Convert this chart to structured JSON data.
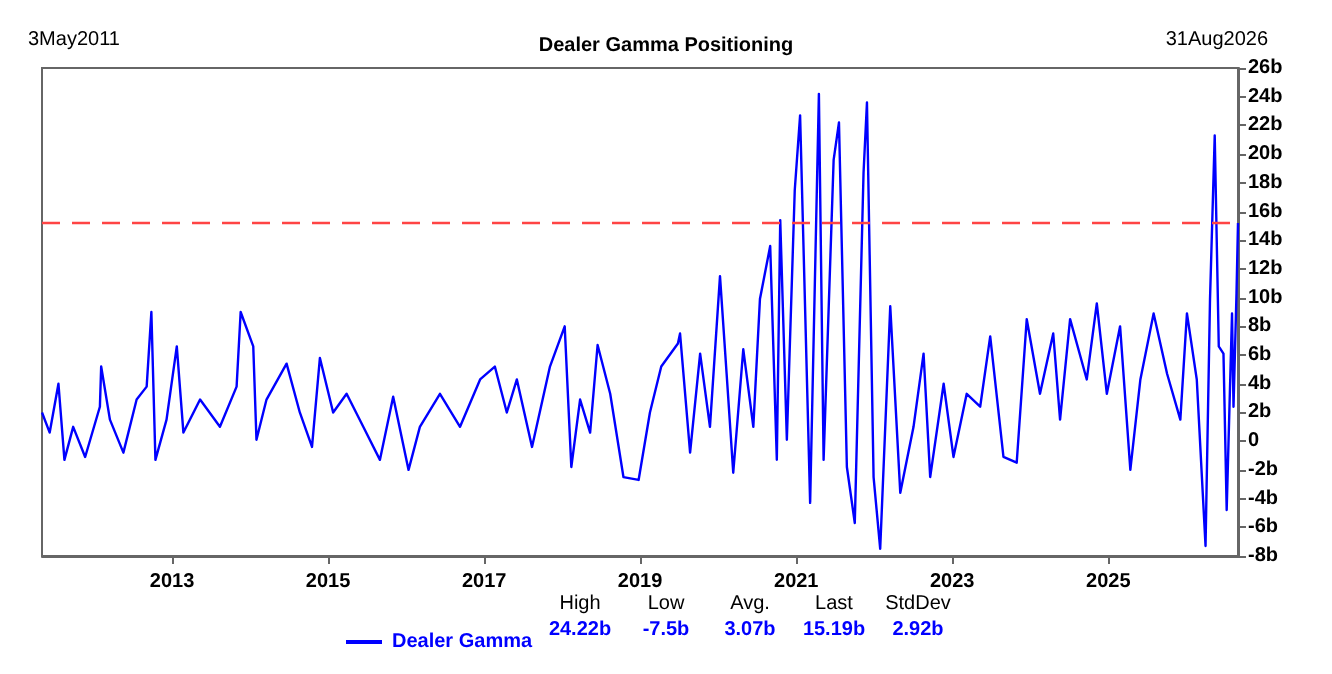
{
  "chart_data": {
    "type": "line",
    "title": "Dealer Gamma Positioning",
    "x": [
      "2011-05-03",
      "2011-06-08",
      "2011-07-19",
      "2011-08-16",
      "2011-09-26",
      "2011-11-21",
      "2012-01-29",
      "2012-02-04",
      "2012-03-16",
      "2012-05-18",
      "2012-07-19",
      "2012-09-04",
      "2012-09-26",
      "2012-10-15",
      "2012-12-06",
      "2013-01-23",
      "2013-02-23",
      "2013-05-12",
      "2013-08-13",
      "2013-10-30",
      "2013-11-18",
      "2014-01-16",
      "2014-01-31",
      "2014-03-19",
      "2014-06-21",
      "2014-08-22",
      "2014-10-18",
      "2014-11-24",
      "2015-01-25",
      "2015-03-29",
      "2015-06-15",
      "2015-09-01",
      "2015-11-02",
      "2016-01-13",
      "2016-03-06",
      "2016-06-08",
      "2016-09-10",
      "2016-12-13",
      "2017-02-20",
      "2017-04-17",
      "2017-06-03",
      "2017-08-13",
      "2017-11-05",
      "2018-01-13",
      "2018-02-13",
      "2018-03-26",
      "2018-05-12",
      "2018-06-16",
      "2018-08-14",
      "2018-10-15",
      "2018-12-25",
      "2019-02-16",
      "2019-04-10",
      "2019-06-27",
      "2019-07-07",
      "2019-08-23",
      "2019-10-09",
      "2019-11-24",
      "2020-01-10",
      "2020-02-10",
      "2020-03-12",
      "2020-04-28",
      "2020-06-14",
      "2020-07-15",
      "2020-09-01",
      "2020-10-02",
      "2020-10-18",
      "2020-11-18",
      "2020-12-25",
      "2021-01-19",
      "2021-03-07",
      "2021-04-17",
      "2021-05-09",
      "2021-06-25",
      "2021-07-20",
      "2021-08-26",
      "2021-10-02",
      "2021-11-12",
      "2021-11-28",
      "2021-12-29",
      "2022-01-29",
      "2022-03-17",
      "2022-05-03",
      "2022-07-04",
      "2022-08-20",
      "2022-09-20",
      "2022-11-22",
      "2023-01-07",
      "2023-03-10",
      "2023-05-12",
      "2023-06-28",
      "2023-08-29",
      "2023-10-30",
      "2023-12-16",
      "2024-02-16",
      "2024-04-18",
      "2024-05-20",
      "2024-07-06",
      "2024-09-22",
      "2024-11-08",
      "2024-12-25",
      "2025-02-25",
      "2025-04-14",
      "2025-05-31",
      "2025-08-01",
      "2025-10-03",
      "2025-12-04",
      "2026-01-04",
      "2026-02-19",
      "2026-04-01",
      "2026-04-22",
      "2026-05-14",
      "2026-06-02",
      "2026-06-24",
      "2026-07-09",
      "2026-08-03",
      "2026-08-10",
      "2026-08-24",
      "2026-08-31"
    ],
    "series": [
      {
        "name": "Dealer Gamma",
        "color": "#0000ff",
        "values": [
          2.0,
          0.6,
          4.0,
          -1.3,
          1,
          -1.1,
          2.4,
          5.2,
          1.5,
          -0.8,
          2.9,
          3.8,
          9.0,
          -1.3,
          1.5,
          6.6,
          0.6,
          2.9,
          1,
          3.8,
          9.0,
          6.6,
          0.1,
          2.9,
          5.4,
          2.0,
          -0.4,
          5.8,
          2,
          3.3,
          1,
          -1.3,
          3.1,
          -2.0,
          1,
          3.3,
          1,
          4.3,
          5.2,
          2,
          4.3,
          -0.4,
          5.2,
          8.0,
          -1.8,
          2.9,
          0.6,
          6.7,
          3.3,
          -2.5,
          -2.7,
          2,
          5.2,
          6.8,
          7.5,
          -0.8,
          6.1,
          1,
          11.5,
          4.7,
          -2.2,
          6.4,
          1,
          9.9,
          13.6,
          -1.3,
          15.4,
          0.1,
          17.5,
          22.7,
          -4.3,
          24.2,
          -1.3,
          19.6,
          22.2,
          -1.8,
          -5.7,
          18.7,
          23.6,
          -2.5,
          -7.5,
          9.4,
          -3.6,
          1,
          6.1,
          -2.5,
          4,
          -1.1,
          3.3,
          2.4,
          7.3,
          -1.1,
          -1.5,
          8.5,
          3.3,
          7.5,
          1.5,
          8.5,
          4.3,
          9.6,
          3.3,
          8,
          -2,
          4.3,
          8.9,
          4.7,
          1.5,
          8.9,
          4.3,
          -7.3,
          9.9,
          21.3,
          6.6,
          6.1,
          -4.8,
          8.9,
          2.4,
          10.3,
          15.2
        ]
      }
    ],
    "xlim": [
      "2011-05-03",
      "2026-08-31"
    ],
    "xticks": [
      "2013",
      "2015",
      "2017",
      "2019",
      "2021",
      "2023",
      "2025"
    ],
    "ylim": [
      -8,
      26
    ],
    "yticks": [
      {
        "value": -8,
        "label": "-8b"
      },
      {
        "value": -6,
        "label": "-6b"
      },
      {
        "value": -4,
        "label": "-4b"
      },
      {
        "value": -2,
        "label": "-2b"
      },
      0,
      {
        "value": 2,
        "label": "2b"
      },
      {
        "value": 4,
        "label": "4b"
      },
      {
        "value": 6,
        "label": "6b"
      },
      {
        "value": 8,
        "label": "8b"
      },
      {
        "value": 10,
        "label": "10b"
      },
      {
        "value": 12,
        "label": "12b"
      },
      {
        "value": 14,
        "label": "14b"
      },
      {
        "value": 16,
        "label": "16b"
      },
      {
        "value": 18,
        "label": "18b"
      },
      {
        "value": 20,
        "label": "20b"
      },
      {
        "value": 22,
        "label": "22b"
      },
      {
        "value": 24,
        "label": "24b"
      },
      {
        "value": 26,
        "label": "26b"
      }
    ],
    "ref_lines": [
      {
        "axis": "y",
        "value": 15.2,
        "label": null,
        "color": "#ff4444",
        "line_style": "dashed"
      }
    ],
    "annotations": [
      "3May2011",
      "31Aug2026",
      "High",
      "Low",
      "Avg.",
      "Last",
      "StdDev",
      "24.22b",
      "-7.5b",
      "3.07b",
      "15.19b",
      "2.92b"
    ],
    "grid": false,
    "legend": "bottom",
    "marker": "none",
    "line_style": "solid"
  }
}
